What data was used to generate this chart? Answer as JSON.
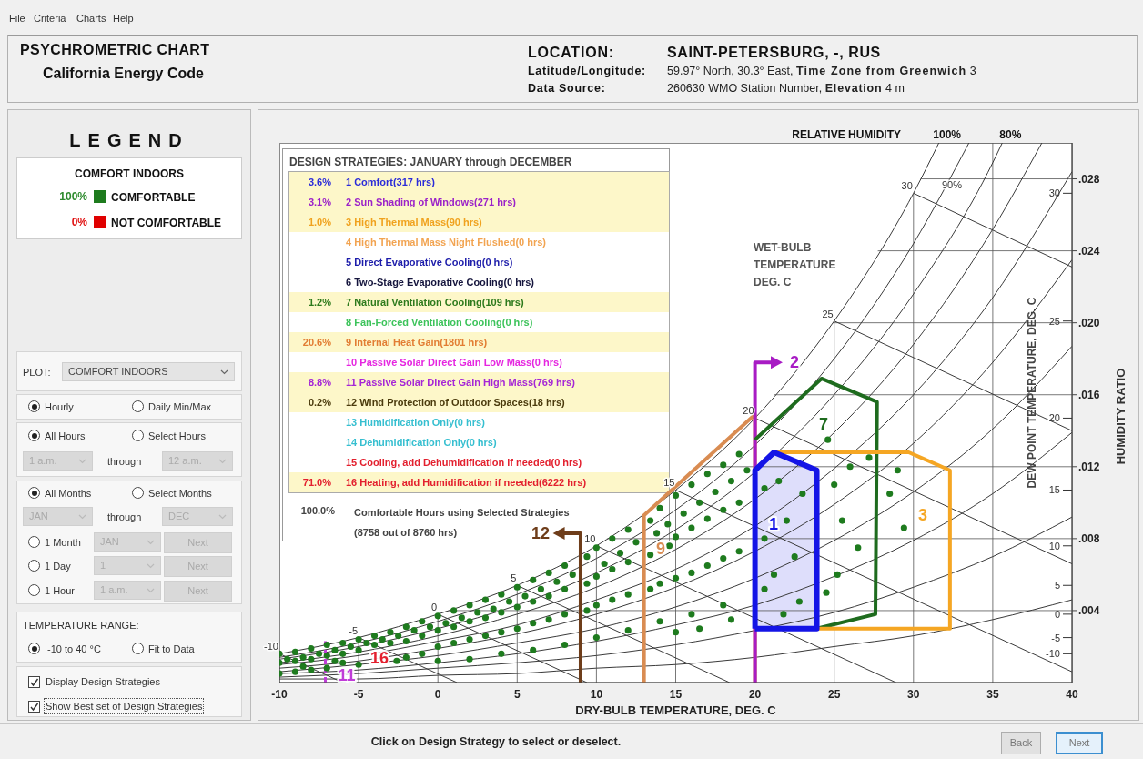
{
  "chart_data": {
    "type": "scatter",
    "title": "PSYCHROMETRIC CHART",
    "subtitle": "California Energy Code",
    "xlabel": "DRY-BULB TEMPERATURE, DEG. C",
    "ylabel": "HUMIDITY RATIO",
    "xlim": [
      -10,
      40
    ],
    "xticks": [
      -10,
      -5,
      0,
      5,
      10,
      15,
      20,
      25,
      30,
      35,
      40
    ],
    "ylim": [
      0,
      0.03
    ],
    "yticks": [
      {
        "value": 0.004,
        "label": ".004"
      },
      {
        "value": 0.008,
        "label": ".008"
      },
      {
        "value": 0.012,
        "label": ".012"
      },
      {
        "value": 0.016,
        "label": ".016"
      },
      {
        "value": 0.02,
        "label": ".020"
      },
      {
        "value": 0.024,
        "label": ".024"
      },
      {
        "value": 0.028,
        "label": ".028"
      }
    ],
    "grid": true,
    "series": [
      {
        "color": "#1e7b1e",
        "marker": "circle",
        "x": [
          -10,
          -10,
          -10,
          -9.5,
          -9,
          -9,
          -9,
          -8.5,
          -8.5,
          -8,
          -8,
          -8,
          -7.5,
          -7,
          -7,
          -7,
          -6.5,
          -6.5,
          -6,
          -6,
          -6,
          -5.5,
          -5,
          -5,
          -5,
          -4.5,
          -4,
          -4,
          -3.5,
          -3,
          -3,
          -2.6,
          -2.5,
          -2,
          -2,
          -2,
          -1.5,
          -1,
          -1,
          -1,
          -0.5,
          0,
          0,
          0,
          0,
          0.5,
          1,
          1,
          1,
          1.5,
          2,
          2,
          2,
          2,
          2.5,
          3,
          3,
          3,
          3.5,
          4,
          4,
          4,
          4,
          4.5,
          5,
          5,
          5,
          5.5,
          6,
          6,
          6,
          6,
          6.5,
          7,
          7,
          7,
          7.5,
          8,
          8,
          8,
          8,
          8.5,
          9.4,
          9.4,
          9.4,
          10,
          10,
          10,
          10,
          10.5,
          11,
          11,
          11,
          11.5,
          12,
          12,
          12,
          12,
          12.5,
          13.4,
          13.4,
          13.4,
          13.8,
          14,
          14.6,
          14,
          14,
          14.5,
          15,
          15,
          15,
          15,
          15.5,
          16,
          16,
          16,
          16,
          16.5,
          16.5,
          17,
          17,
          17,
          17.5,
          18,
          18,
          18,
          18,
          18.5,
          18.5,
          19,
          19,
          19,
          19.5,
          20.6,
          20.6,
          20.6,
          21.5,
          22,
          22.5,
          23,
          21.2,
          22.8,
          21.8,
          24.6,
          25,
          25.5,
          26,
          26.5,
          25.2,
          24.5,
          27.2,
          28.5,
          29,
          29.4
        ],
        "values": [
          0.0016,
          0.0011,
          0.0005,
          0.0013,
          0.0017,
          0.0012,
          0.0006,
          0.0014,
          0.0009,
          0.0019,
          0.0013,
          0.0007,
          0.0016,
          0.0021,
          0.0015,
          0.0008,
          0.0018,
          0.0012,
          0.0022,
          0.0016,
          0.0011,
          0.002,
          0.0024,
          0.0018,
          0.001,
          0.0022,
          0.0026,
          0.0021,
          0.0024,
          0.0028,
          0.0022,
          0.0012,
          0.0026,
          0.0031,
          0.0023,
          0.0014,
          0.0029,
          0.0034,
          0.0026,
          0.0016,
          0.0031,
          0.0037,
          0.0029,
          0.002,
          0.0012,
          0.0033,
          0.004,
          0.0031,
          0.0022,
          0.0036,
          0.0043,
          0.0034,
          0.0024,
          0.0013,
          0.0039,
          0.0046,
          0.0036,
          0.0026,
          0.0041,
          0.0049,
          0.0039,
          0.0028,
          0.0016,
          0.0045,
          0.0053,
          0.0042,
          0.003,
          0.0048,
          0.0057,
          0.0045,
          0.0033,
          0.0018,
          0.0052,
          0.0061,
          0.0048,
          0.0035,
          0.0056,
          0.0065,
          0.0052,
          0.0038,
          0.0021,
          0.006,
          0.007,
          0.0055,
          0.004,
          0.0075,
          0.0059,
          0.0043,
          0.0025,
          0.0066,
          0.008,
          0.0063,
          0.0046,
          0.0072,
          0.0085,
          0.0067,
          0.0049,
          0.0029,
          0.0078,
          0.009,
          0.0071,
          0.0052,
          0.0083,
          0.0097,
          0.0076,
          0.0055,
          0.0034,
          0.0088,
          0.0104,
          0.0081,
          0.0058,
          0.0028,
          0.0094,
          0.011,
          0.0086,
          0.0061,
          0.0038,
          0.01,
          0.003,
          0.0116,
          0.0091,
          0.0065,
          0.0106,
          0.0121,
          0.0096,
          0.0069,
          0.0043,
          0.0112,
          0.0035,
          0.0127,
          0.01,
          0.0073,
          0.0118,
          0.0108,
          0.008,
          0.0052,
          0.0112,
          0.009,
          0.007,
          0.0105,
          0.006,
          0.0045,
          0.0038,
          0.0135,
          0.011,
          0.009,
          0.012,
          0.0075,
          0.006,
          0.005,
          0.0125,
          0.0105,
          0.0118,
          0.0086
        ]
      },
      {
        "type": "line",
        "color": "#3a3a3a",
        "x": [
          -10,
          -5,
          0,
          5,
          10,
          15,
          20,
          25,
          30,
          31.6
        ],
        "values": [
          0.0016,
          0.0025,
          0.0038,
          0.0054,
          0.0076,
          0.0107,
          0.0147,
          0.0201,
          0.0272,
          0.03
        ]
      },
      {
        "type": "line",
        "color": "#3a3a3a",
        "x": [
          -10,
          -5,
          0,
          5,
          10,
          15,
          20,
          25,
          30,
          33.5
        ],
        "values": [
          0.0014,
          0.0022,
          0.0034,
          0.0049,
          0.0069,
          0.0096,
          0.0132,
          0.018,
          0.0244,
          0.03
        ]
      },
      {
        "type": "line",
        "color": "#3a3a3a",
        "x": [
          -10,
          -5,
          0,
          5,
          10,
          15,
          20,
          25,
          30,
          35,
          35.6
        ],
        "values": [
          0.0013,
          0.002,
          0.003,
          0.0043,
          0.0061,
          0.0085,
          0.0117,
          0.016,
          0.0216,
          0.0289,
          0.03
        ]
      },
      {
        "type": "line",
        "color": "#3a3a3a",
        "x": [
          -10,
          -5,
          0,
          5,
          10,
          15,
          20,
          25,
          30,
          35,
          38.1
        ],
        "values": [
          0.0011,
          0.0017,
          0.0026,
          0.0038,
          0.0053,
          0.0074,
          0.0102,
          0.0139,
          0.0188,
          0.0252,
          0.03
        ]
      },
      {
        "type": "line",
        "color": "#3a3a3a",
        "x": [
          -10,
          -5,
          0,
          5,
          10,
          15,
          20,
          25,
          30,
          35,
          40
        ],
        "values": [
          0.001,
          0.0015,
          0.0023,
          0.0032,
          0.0046,
          0.0063,
          0.0087,
          0.0119,
          0.016,
          0.0214,
          0.0284
        ]
      },
      {
        "type": "line",
        "color": "#3a3a3a",
        "x": [
          -10,
          -5,
          0,
          5,
          10,
          15,
          20,
          25,
          30,
          35,
          40
        ],
        "values": [
          0.0008,
          0.0012,
          0.0019,
          0.0027,
          0.0038,
          0.0053,
          0.0073,
          0.0099,
          0.0133,
          0.0178,
          0.0235
        ]
      },
      {
        "type": "line",
        "color": "#3a3a3a",
        "x": [
          -10,
          -5,
          0,
          5,
          10,
          15,
          20,
          25,
          30,
          35,
          40
        ],
        "values": [
          0.0006,
          0.001,
          0.0015,
          0.0022,
          0.003,
          0.0042,
          0.0058,
          0.0079,
          0.0106,
          0.0141,
          0.0187
        ]
      },
      {
        "type": "line",
        "color": "#3a3a3a",
        "x": [
          -10,
          -5,
          0,
          5,
          10,
          15,
          20,
          25,
          30,
          35,
          40
        ],
        "values": [
          0.0005,
          0.0007,
          0.0011,
          0.0016,
          0.0023,
          0.0032,
          0.0043,
          0.0059,
          0.0079,
          0.0105,
          0.0139
        ]
      },
      {
        "type": "line",
        "color": "#3a3a3a",
        "x": [
          -10,
          -5,
          0,
          5,
          10,
          15,
          20,
          25,
          30,
          35,
          40
        ],
        "values": [
          0.0003,
          0.0005,
          0.0008,
          0.0011,
          0.0015,
          0.0021,
          0.0029,
          0.0039,
          0.0053,
          0.007,
          0.0092
        ]
      },
      {
        "type": "line",
        "color": "#3a3a3a",
        "x": [
          -10,
          -5,
          0,
          5,
          10,
          15,
          20,
          25,
          30,
          35,
          40
        ],
        "values": [
          0.0002,
          0.0002,
          0.0004,
          0.0005,
          0.0008,
          0.001,
          0.0014,
          0.002,
          0.0026,
          0.0035,
          0.0046
        ]
      },
      {
        "type": "line",
        "color": "#3a3a3a",
        "x": [
          -10,
          -6
        ],
        "values": [
          0.0016,
          0
        ]
      },
      {
        "type": "line",
        "color": "#3a3a3a",
        "x": [
          -5,
          1.2
        ],
        "values": [
          0.0025,
          0
        ]
      },
      {
        "type": "line",
        "color": "#3a3a3a",
        "x": [
          0,
          9.4
        ],
        "values": [
          0.0038,
          0
        ]
      },
      {
        "type": "line",
        "color": "#3a3a3a",
        "x": [
          5,
          18.4
        ],
        "values": [
          0.0054,
          0
        ]
      },
      {
        "type": "line",
        "color": "#3a3a3a",
        "x": [
          10,
          28.9
        ],
        "values": [
          0.0076,
          0
        ]
      },
      {
        "type": "line",
        "color": "#3a3a3a",
        "x": [
          15,
          40
        ],
        "values": [
          0.0107,
          0.0006
        ]
      },
      {
        "type": "line",
        "color": "#3a3a3a",
        "x": [
          20,
          40
        ],
        "values": [
          0.0147,
          0.0066
        ]
      },
      {
        "type": "line",
        "color": "#3a3a3a",
        "x": [
          25,
          40
        ],
        "values": [
          0.0201,
          0.014
        ]
      },
      {
        "type": "line",
        "color": "#3a3a3a",
        "x": [
          30,
          40
        ],
        "values": [
          0.0272,
          0.0231
        ]
      },
      {
        "type": "line",
        "color": "#d98c52",
        "x": [
          13,
          13,
          20,
          20
        ],
        "values": [
          0,
          0.0093,
          0.0149,
          0
        ]
      },
      {
        "type": "line",
        "color": "#6e3d1a",
        "x": [
          9,
          9,
          7.6
        ],
        "values": [
          0,
          0.0083,
          0.0083
        ]
      },
      {
        "type": "line",
        "color": "#a81cc4",
        "x": [
          20,
          20,
          21.4
        ],
        "values": [
          0,
          0.0178,
          0.0178
        ]
      },
      {
        "type": "line",
        "color": "#1e6b1e",
        "x": [
          20,
          24.2,
          27.7,
          27.6,
          23.9
        ],
        "values": [
          0.0135,
          0.0169,
          0.0156,
          0.0038,
          0.003
        ]
      },
      {
        "type": "line",
        "color": "#f5a623",
        "x": [
          21.2,
          29.7,
          32.3,
          32.3,
          23.9
        ],
        "values": [
          0.0128,
          0.0128,
          0.0118,
          0.003,
          0.003
        ]
      },
      {
        "type": "area",
        "color": "#1414e6",
        "x": [
          20,
          20,
          21.2,
          23.9,
          23.9,
          20
        ],
        "values": [
          0.003,
          0.0118,
          0.0128,
          0.0118,
          0.003,
          0.003
        ]
      },
      {
        "type": "line",
        "color": "#c03cd8",
        "line_style": "dashed",
        "x": [
          -7.1,
          -7.1
        ],
        "values": [
          0,
          0.0023
        ]
      }
    ],
    "annotations": [
      "File",
      "Criteria",
      "Charts",
      "Help",
      "LOCATION:",
      "SAINT-PETERSBURG, -, RUS",
      "Latitude/Longitude:",
      "59.97° North, 30.3° East,",
      "Time Zone from Greenwich",
      "3",
      "Data Source:",
      "260630 WMO Station Number,",
      "Elevation",
      "4 m",
      "LEGEND",
      "COMFORT INDOORS",
      "100%",
      "COMFORTABLE",
      "0%",
      "NOT COMFORTABLE",
      "PLOT:",
      "COMFORT INDOORS",
      "Hourly",
      "Daily Min/Max",
      "All Hours",
      "Select Hours",
      "1 a.m.",
      "through",
      "12 a.m.",
      "All Months",
      "Select Months",
      "JAN",
      "through",
      "DEC",
      "1 Month",
      "JAN",
      "Next",
      "1 Day",
      "1",
      "Next",
      "1 Hour",
      "1 a.m.",
      "Next",
      "TEMPERATURE RANGE:",
      "-10 to 40 °C",
      "Fit to Data",
      "Display Design Strategies",
      "Show Best set of Design Strategies",
      "Click on Design Strategy to select or deselect.",
      "Back",
      "Next",
      "RELATIVE HUMIDITY",
      "WET-BULB TEMPERATURE DEG. C",
      "DESIGN STRATEGIES: JANUARY through DECEMBER",
      "3.6%",
      "1 Comfort(317 hrs)",
      "3.1%",
      "2 Sun Shading of Windows(271 hrs)",
      "1.0%",
      "3 High Thermal Mass(90 hrs)",
      "4 High Thermal Mass Night Flushed(0 hrs)",
      "5 Direct Evaporative Cooling(0 hrs)",
      "6 Two-Stage Evaporative Cooling(0 hrs)",
      "1.2%",
      "7 Natural Ventilation Cooling(109 hrs)",
      "8 Fan-Forced Ventilation Cooling(0 hrs)",
      "20.6%",
      "9 Internal Heat Gain(1801 hrs)",
      "10 Passive Solar Direct Gain Low Mass(0 hrs)",
      "8.8%",
      "11 Passive Solar Direct Gain High Mass(769 hrs)",
      "0.2%",
      "12 Wind Protection of Outdoor Spaces(18 hrs)",
      "13 Humidification Only(0 hrs)",
      "14 Dehumidification Only(0 hrs)",
      "15 Cooling, add Dehumidification if needed(0 hrs)",
      "71.0%",
      "16 Heating, add Humidification if needed(6222 hrs)",
      "100.0%",
      "Comfortable Hours using Selected Strategies",
      "(8758 out of 8760 hrs)",
      "90%",
      "16",
      "DEW POINT TEMPERATURE, DEG. C",
      "-10",
      "-5",
      "0",
      "5",
      "10",
      "15",
      "20",
      "25",
      "30",
      "9",
      "12",
      "2",
      "7",
      "3",
      "1",
      "11",
      {
        "text": "-10",
        "x": -10,
        "y": 0.0016
      },
      {
        "text": "-5",
        "x": -5,
        "y": 0.0025
      },
      {
        "text": "0",
        "x": 0,
        "y": 0.0038
      },
      {
        "text": "5",
        "x": 5,
        "y": 0.0054
      },
      {
        "text": "10",
        "x": 10,
        "y": 0.0076
      },
      {
        "text": "15",
        "x": 15,
        "y": 0.0107
      },
      {
        "text": "20",
        "x": 20,
        "y": 0.0147
      },
      {
        "text": "25",
        "x": 25,
        "y": 0.0201
      },
      {
        "text": "30",
        "x": 30,
        "y": 0.0272
      },
      {
        "text": "100%",
        "x": 31.6,
        "y": 0.03
      },
      {
        "text": "80%",
        "x": 35.6,
        "y": 0.03
      }
    ]
  }
}
